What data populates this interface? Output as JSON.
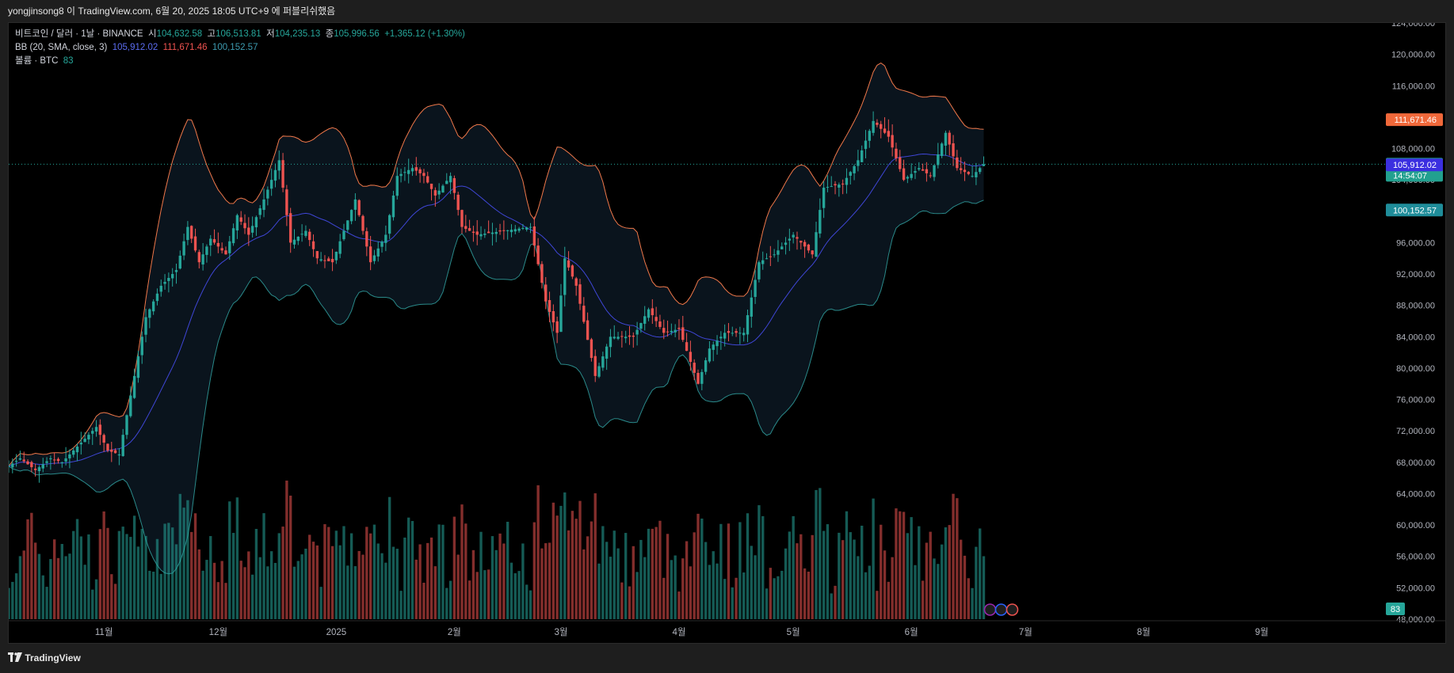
{
  "header": {
    "publish_line": "yongjinsong8 이 TradingView.com, 6월 20, 2025 18:05 UTC+9 에 퍼블리쉬했음"
  },
  "legend": {
    "symbol": "비트코인 / 달러 · 1날 · BINANCE",
    "open_label": "시",
    "open": "104,632.58",
    "high_label": "고",
    "high": "106,513.81",
    "low_label": "저",
    "low": "104,235.13",
    "close_label": "종",
    "close": "105,996.56",
    "change": "+1,365.12 (+1.30%)",
    "bb_label": "BB (20, SMA, close, 3)",
    "bb_basis": "105,912.02",
    "bb_upper": "111,671.46",
    "bb_lower": "100,152.57",
    "vol_label": "볼륨 · BTC",
    "vol_value": "83"
  },
  "price_tags": {
    "upper": "111,671.46",
    "close": "105,996.56",
    "countdown": "14:54:07",
    "basis": "105,912.02",
    "lower": "100,152.57",
    "volume": "83"
  },
  "colors": {
    "up": "#26a69a",
    "down": "#ef5350",
    "basis": "#3f46d6",
    "upper_band": "#f0784a",
    "lower_band": "#2a8a8a",
    "background": "#000000"
  },
  "footer": {
    "brand": "TradingView",
    "logo_icon": "tradingview-logo-icon"
  },
  "chart_data": {
    "type": "candlestick",
    "ylim": [
      48000,
      124000
    ],
    "y_ticks": [
      48000,
      52000,
      56000,
      60000,
      64000,
      68000,
      72000,
      76000,
      80000,
      84000,
      88000,
      92000,
      96000,
      100000,
      104000,
      108000,
      112000,
      116000,
      120000,
      124000
    ],
    "y_tick_labels": [
      "48,000.00",
      "52,000.00",
      "56,000.00",
      "60,000.00",
      "64,000.00",
      "68,000.00",
      "72,000.00",
      "76,000.00",
      "80,000.00",
      "84,000.00",
      "88,000.00",
      "92,000.00",
      "96,000.00",
      "100,000.00",
      "104,000.00",
      "108,000.00",
      "112,000.00",
      "116,000.00",
      "120,000.00",
      "124,000.00"
    ],
    "x_labels": [
      {
        "label": "11월",
        "date": "2024-11-01"
      },
      {
        "label": "12월",
        "date": "2024-12-01"
      },
      {
        "label": "2025",
        "date": "2025-01-01"
      },
      {
        "label": "2월",
        "date": "2025-02-01"
      },
      {
        "label": "3월",
        "date": "2025-03-01"
      },
      {
        "label": "4월",
        "date": "2025-04-01"
      },
      {
        "label": "5월",
        "date": "2025-05-01"
      },
      {
        "label": "6월",
        "date": "2025-06-01"
      },
      {
        "label": "7월",
        "date": "2025-07-01"
      },
      {
        "label": "8월",
        "date": "2025-08-01"
      },
      {
        "label": "9월",
        "date": "2025-09-01"
      }
    ],
    "x_range": [
      "2024-10-07",
      "2025-10-04"
    ],
    "last_date": "2025-06-20",
    "close_anchors": [
      [
        "2024-10-07",
        67500
      ],
      [
        "2024-10-10",
        68500
      ],
      [
        "2024-10-14",
        67000
      ],
      [
        "2024-10-18",
        68500
      ],
      [
        "2024-10-21",
        68000
      ],
      [
        "2024-10-26",
        70500
      ],
      [
        "2024-10-30",
        72500
      ],
      [
        "2024-11-02",
        69500
      ],
      [
        "2024-11-05",
        69000
      ],
      [
        "2024-11-08",
        76500
      ],
      [
        "2024-11-12",
        86500
      ],
      [
        "2024-11-16",
        90500
      ],
      [
        "2024-11-20",
        92500
      ],
      [
        "2024-11-23",
        98000
      ],
      [
        "2024-11-26",
        93500
      ],
      [
        "2024-11-29",
        96500
      ],
      [
        "2024-12-03",
        94500
      ],
      [
        "2024-12-06",
        99500
      ],
      [
        "2024-12-09",
        97000
      ],
      [
        "2024-12-13",
        101500
      ],
      [
        "2024-12-17",
        106500
      ],
      [
        "2024-12-20",
        96000
      ],
      [
        "2024-12-24",
        97500
      ],
      [
        "2024-12-27",
        94000
      ],
      [
        "2024-12-31",
        93500
      ],
      [
        "2025-01-06",
        101500
      ],
      [
        "2025-01-10",
        93500
      ],
      [
        "2025-01-14",
        97000
      ],
      [
        "2025-01-17",
        104500
      ],
      [
        "2025-01-21",
        105500
      ],
      [
        "2025-01-24",
        104500
      ],
      [
        "2025-01-27",
        102000
      ],
      [
        "2025-01-31",
        104500
      ],
      [
        "2025-02-03",
        98000
      ],
      [
        "2025-02-07",
        97000
      ],
      [
        "2025-02-14",
        97500
      ],
      [
        "2025-02-21",
        98000
      ],
      [
        "2025-02-25",
        88500
      ],
      [
        "2025-02-28",
        84500
      ],
      [
        "2025-03-02",
        94000
      ],
      [
        "2025-03-05",
        90500
      ],
      [
        "2025-03-10",
        79000
      ],
      [
        "2025-03-14",
        84000
      ],
      [
        "2025-03-20",
        84000
      ],
      [
        "2025-03-24",
        87500
      ],
      [
        "2025-03-28",
        84500
      ],
      [
        "2025-04-01",
        85000
      ],
      [
        "2025-04-06",
        78000
      ],
      [
        "2025-04-09",
        82500
      ],
      [
        "2025-04-13",
        84500
      ],
      [
        "2025-04-18",
        84500
      ],
      [
        "2025-04-22",
        93500
      ],
      [
        "2025-04-26",
        94500
      ],
      [
        "2025-05-01",
        97000
      ],
      [
        "2025-05-06",
        94500
      ],
      [
        "2025-05-09",
        103000
      ],
      [
        "2025-05-14",
        103500
      ],
      [
        "2025-05-18",
        106500
      ],
      [
        "2025-05-22",
        111500
      ],
      [
        "2025-05-26",
        109500
      ],
      [
        "2025-05-30",
        104000
      ],
      [
        "2025-06-03",
        105500
      ],
      [
        "2025-06-06",
        104500
      ],
      [
        "2025-06-10",
        110000
      ],
      [
        "2025-06-13",
        105500
      ],
      [
        "2025-06-17",
        104500
      ],
      [
        "2025-06-20",
        105997
      ]
    ],
    "volume_ylim": [
      0,
      200000
    ],
    "last_volume": 83,
    "overlays": [
      "Bollinger Bands (20, SMA, close, 3)",
      "Volume"
    ],
    "grid": false
  }
}
